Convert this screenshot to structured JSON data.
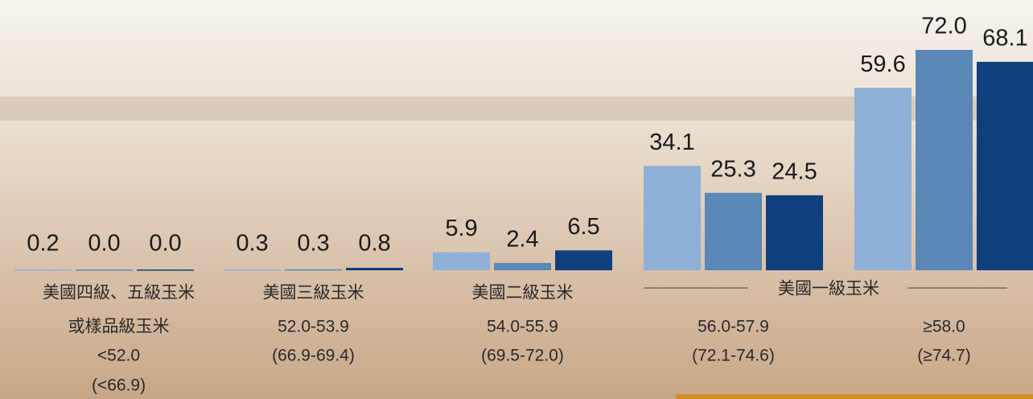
{
  "chart_data": {
    "type": "bar",
    "categories": [
      [
        "美國四級、五級玉米",
        "或樣品級玉米",
        "<52.0",
        "(<66.9)"
      ],
      [
        "美國三級玉米",
        "52.0-53.9",
        "(66.9-69.4)"
      ],
      [
        "美國二級玉米",
        "54.0-55.9",
        "(69.5-72.0)"
      ],
      [
        "56.0-57.9",
        "(72.1-74.6)"
      ],
      [
        "≥58.0",
        "(≥74.7)"
      ]
    ],
    "group_label": "美國一級玉米",
    "series": [
      {
        "color": "#8fb0d6",
        "values": [
          0.2,
          0.3,
          5.9,
          34.1,
          59.6
        ],
        "value_labels": [
          "0.2",
          "0.3",
          "5.9",
          "34.1",
          "59.6"
        ]
      },
      {
        "color": "#5a87b6",
        "values": [
          0,
          0.3,
          2.4,
          25.3,
          72
        ],
        "value_labels": [
          "0.0",
          "0.3",
          "2.4",
          "25.3",
          "72.0"
        ]
      },
      {
        "color": "#0f3f7d",
        "values": [
          0,
          0.8,
          6.5,
          24.5,
          68.1
        ],
        "value_labels": [
          "0.0",
          "0.8",
          "6.5",
          "24.5",
          "68.1"
        ]
      }
    ],
    "ylim": [
      0,
      72
    ]
  }
}
